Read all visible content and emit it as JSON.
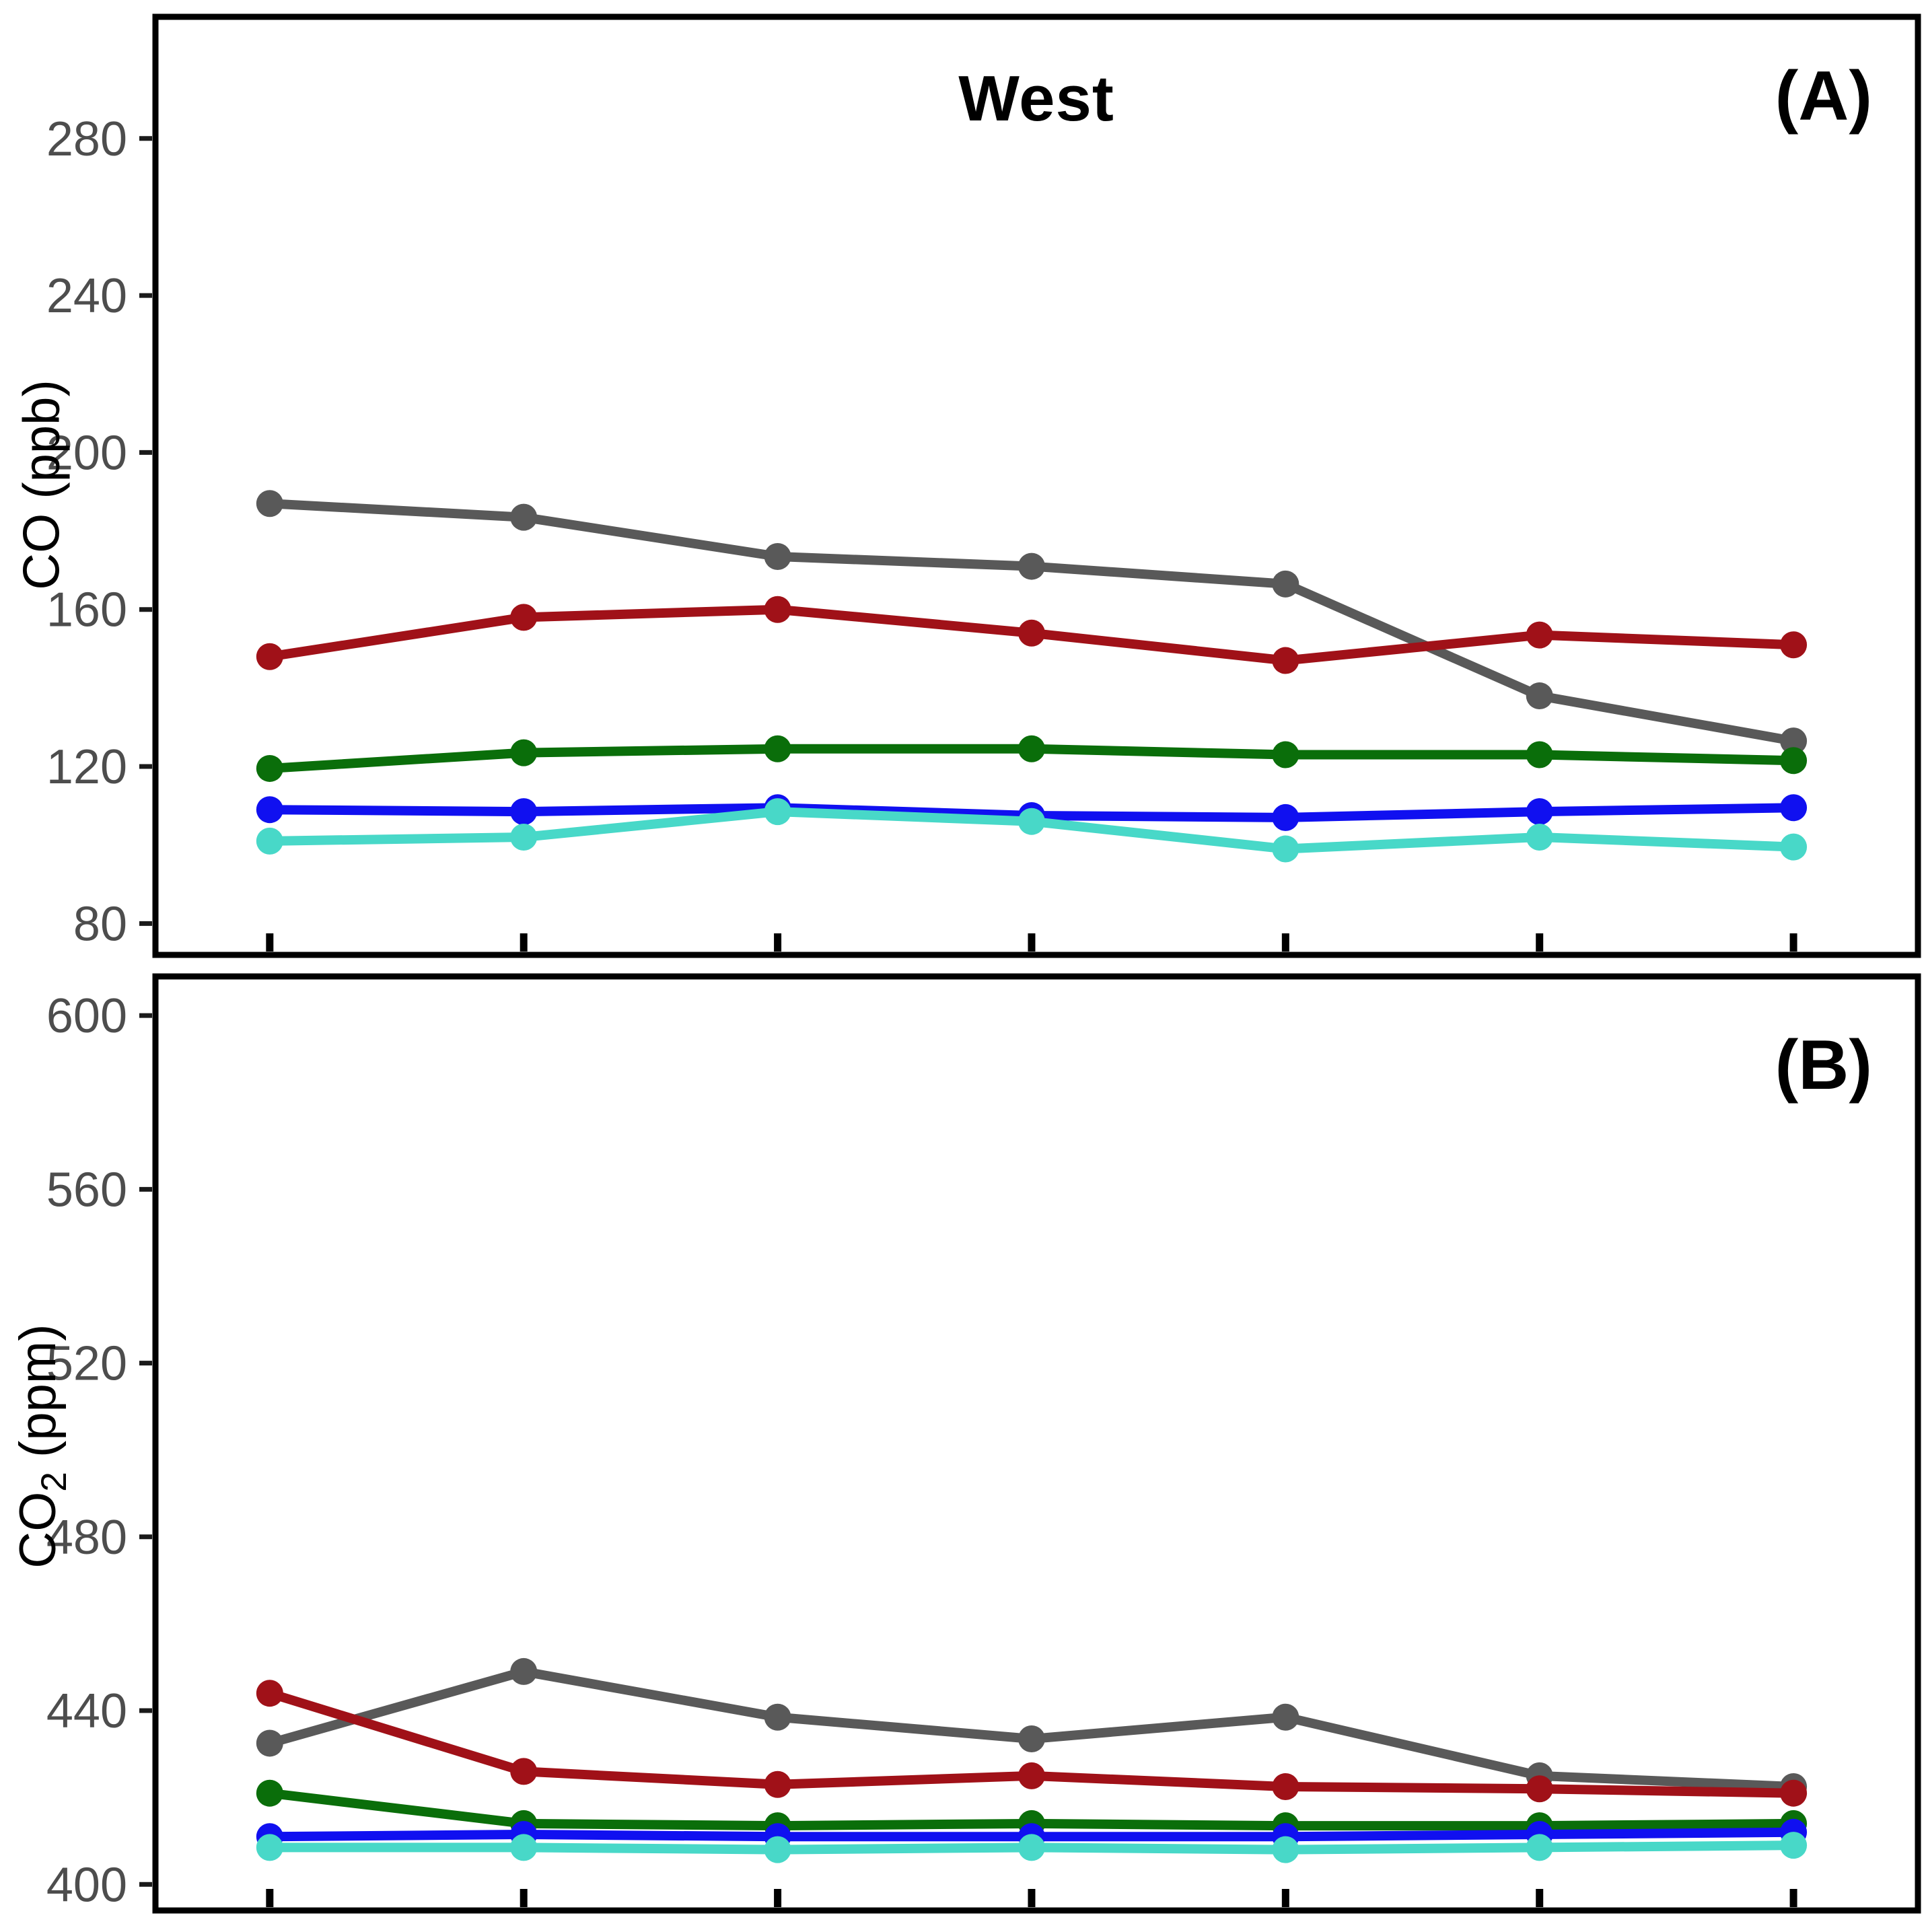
{
  "title": "West",
  "panel_a": {
    "label": "(A)",
    "ylabel": "CO (ppb)"
  },
  "panel_b": {
    "label": "(B)",
    "ylabel": "CO2 (ppm)",
    "ylabel_prefix": "CO",
    "ylabel_sub": "2",
    "ylabel_suffix": " (ppm)"
  },
  "colors": {
    "gray": "#595959",
    "darkred": "#a01118",
    "green": "#0a6e0a",
    "blue": "#1010f0",
    "turquoise": "#48d8c8",
    "axis": "#000000",
    "tick_label": "#4d4d4d"
  },
  "chart_data": [
    {
      "type": "line",
      "panel": "A",
      "panel_label": "(A)",
      "title": "West",
      "xlabel": "",
      "ylabel": "CO (ppb)",
      "grid": false,
      "legend": "none",
      "x": [
        1,
        2,
        3,
        4,
        5,
        6,
        7
      ],
      "xlim": [
        0.55,
        7.49
      ],
      "yticks": [
        280,
        240,
        200,
        160,
        120,
        80
      ],
      "ylim": [
        72,
        311
      ],
      "series": [
        {
          "name": "gray",
          "color": "#595959",
          "values": [
            187,
            183.5,
            173.5,
            171,
            166.5,
            138,
            126.5
          ]
        },
        {
          "name": "darkred",
          "color": "#a01118",
          "values": [
            148,
            158,
            160,
            154,
            147,
            153.5,
            151
          ]
        },
        {
          "name": "green",
          "color": "#0a6e0a",
          "values": [
            119.5,
            123.5,
            124.5,
            124.5,
            123,
            123,
            121.5
          ]
        },
        {
          "name": "blue",
          "color": "#1010f0",
          "values": [
            109,
            108.5,
            109.5,
            107.5,
            107,
            108.5,
            109.5
          ]
        },
        {
          "name": "turquoise",
          "color": "#48d8c8",
          "values": [
            101,
            102,
            108.5,
            106,
            99,
            102,
            99.5
          ]
        }
      ]
    },
    {
      "type": "line",
      "panel": "B",
      "panel_label": "(B)",
      "title": "",
      "xlabel": "",
      "ylabel": "CO2 (ppm)",
      "grid": false,
      "legend": "none",
      "x": [
        1,
        2,
        3,
        4,
        5,
        6,
        7
      ],
      "xlim": [
        0.55,
        7.49
      ],
      "yticks": [
        600,
        560,
        520,
        480,
        440,
        400
      ],
      "ylim": [
        394,
        609
      ],
      "series": [
        {
          "name": "gray",
          "color": "#595959",
          "values": [
            432.5,
            449,
            438.5,
            433.5,
            438.5,
            425,
            422.5
          ]
        },
        {
          "name": "darkred",
          "color": "#a01118",
          "values": [
            444,
            426,
            423,
            425,
            422.5,
            422,
            421
          ]
        },
        {
          "name": "green",
          "color": "#0a6e0a",
          "values": [
            421,
            414,
            413.5,
            414,
            413.5,
            413.5,
            414
          ]
        },
        {
          "name": "blue",
          "color": "#1010f0",
          "values": [
            411,
            411.5,
            411,
            411,
            411,
            411.5,
            412
          ]
        },
        {
          "name": "turquoise",
          "color": "#48d8c8",
          "values": [
            408.5,
            408.5,
            408,
            408.5,
            408,
            408.5,
            409
          ]
        }
      ]
    }
  ]
}
